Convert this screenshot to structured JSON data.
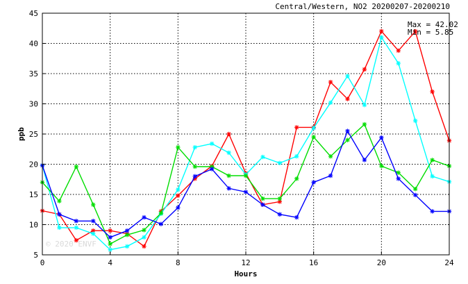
{
  "chart_data": {
    "type": "line",
    "title": "Central/Western, NO2 20200207-20200210",
    "xlabel": "Hours",
    "ylabel": "ppb",
    "xlim": [
      0,
      24
    ],
    "ylim": [
      5,
      45
    ],
    "xticks": [
      0,
      4,
      8,
      12,
      16,
      20,
      24
    ],
    "yticks": [
      5,
      10,
      15,
      20,
      25,
      30,
      35,
      40,
      45
    ],
    "grid": true,
    "stats": {
      "max": "Max = 42.02",
      "min": "Min = 5.85"
    },
    "watermark": "© 2020 ENVF",
    "x": [
      0,
      1,
      2,
      3,
      4,
      5,
      6,
      7,
      8,
      9,
      10,
      11,
      12,
      13,
      14,
      15,
      16,
      17,
      18,
      19,
      20,
      21,
      22,
      23,
      24
    ],
    "series": [
      {
        "color": "#ff0000",
        "values": [
          12.3,
          11.7,
          7.4,
          9.0,
          9.0,
          8.5,
          6.4,
          12.2,
          14.8,
          17.6,
          19.7,
          25.0,
          18.5,
          13.3,
          13.8,
          26.1,
          26.1,
          33.6,
          30.8,
          35.7,
          42.02,
          38.8,
          42.0,
          32.0,
          23.9
        ]
      },
      {
        "color": "#00ffff",
        "values": [
          19.8,
          9.5,
          9.5,
          8.5,
          5.85,
          6.4,
          7.9,
          11.8,
          15.8,
          22.8,
          23.4,
          21.9,
          18.3,
          21.2,
          20.2,
          21.3,
          26.0,
          30.2,
          34.6,
          29.8,
          41.0,
          36.7,
          27.2,
          18.0,
          17.1
        ]
      },
      {
        "color": "#00dd00",
        "values": [
          17.0,
          13.9,
          19.6,
          13.3,
          6.8,
          8.3,
          9.1,
          11.9,
          22.8,
          19.6,
          19.6,
          18.1,
          18.1,
          14.3,
          14.3,
          17.6,
          24.5,
          21.3,
          24.0,
          26.6,
          19.7,
          18.6,
          15.9,
          20.7,
          19.7
        ]
      },
      {
        "color": "#0000ff",
        "values": [
          19.8,
          11.7,
          10.6,
          10.6,
          7.9,
          9.0,
          11.2,
          10.1,
          12.8,
          18.0,
          19.2,
          16.0,
          15.4,
          13.3,
          11.7,
          11.2,
          17.0,
          18.1,
          25.5,
          20.7,
          24.4,
          17.6,
          14.9,
          12.2,
          12.2
        ]
      }
    ]
  }
}
